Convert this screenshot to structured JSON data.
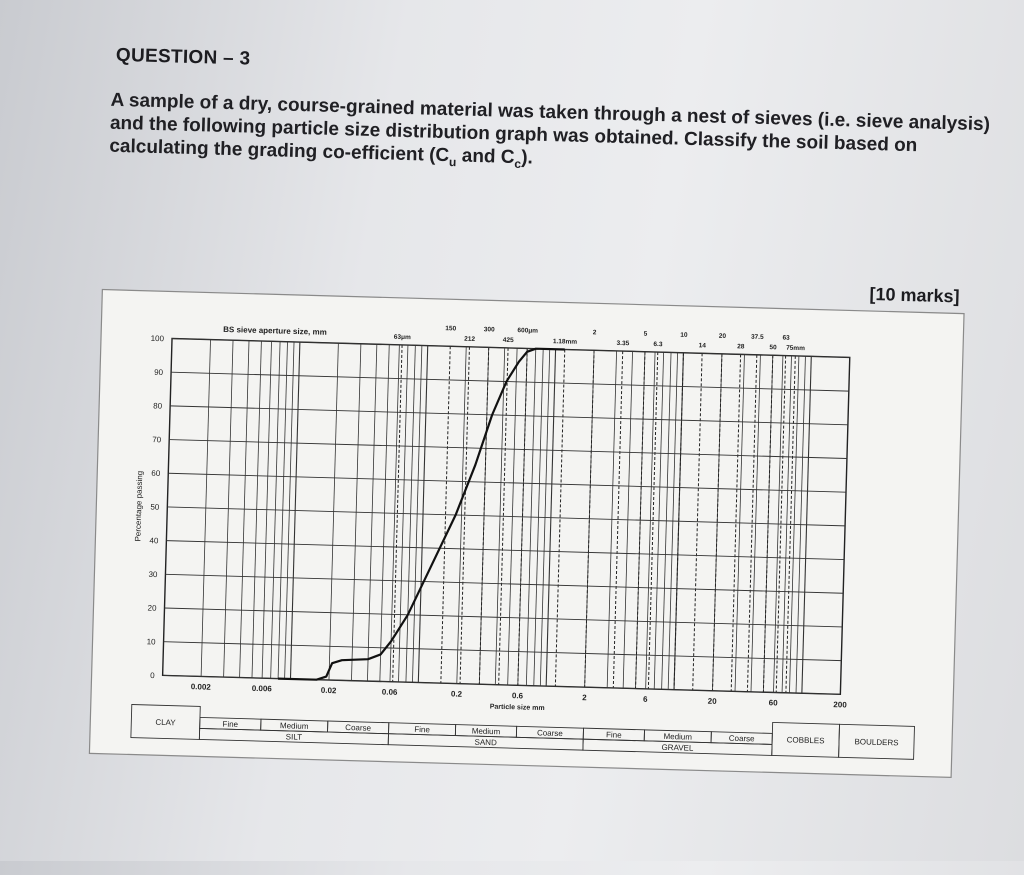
{
  "question": {
    "title": "QUESTION – 3",
    "body_parts": [
      "A sample of a dry, course-grained material was taken through a nest of sieves (i.e. sieve analysis) and the following particle size distribution graph was obtained. Classify the soil based on calculating the grading co-efficient (C",
      "u",
      " and C",
      "c",
      ")."
    ],
    "marks": "[10 marks]"
  },
  "chart_data": {
    "type": "line",
    "title": "",
    "xlabel": "Particle size mm",
    "ylabel": "Percentage passing",
    "top_caption": "BS sieve aperture size, mm",
    "x_scale": "log",
    "xlim": [
      0.001,
      200
    ],
    "ylim": [
      0,
      100
    ],
    "y_ticks": [
      "0",
      "10",
      "20",
      "30",
      "40",
      "50",
      "60",
      "70",
      "80",
      "90",
      "100"
    ],
    "x_ticks": [
      {
        "value": 0.002,
        "label": "0.002"
      },
      {
        "value": 0.006,
        "label": "0.006"
      },
      {
        "value": 0.02,
        "label": "0.02"
      },
      {
        "value": 0.06,
        "label": "0.06"
      },
      {
        "value": 0.2,
        "label": "0.2"
      },
      {
        "value": 0.6,
        "label": "0.6"
      },
      {
        "value": 2,
        "label": "2"
      },
      {
        "value": 6,
        "label": "6"
      },
      {
        "value": 20,
        "label": "20"
      },
      {
        "value": 60,
        "label": "60"
      },
      {
        "value": 200,
        "label": "200"
      }
    ],
    "sieve_labels": [
      {
        "value": 0.063,
        "label": "63μm"
      },
      {
        "value": 0.15,
        "label": "150"
      },
      {
        "value": 0.212,
        "label": "212"
      },
      {
        "value": 0.3,
        "label": "300"
      },
      {
        "value": 0.425,
        "label": "425"
      },
      {
        "value": 0.6,
        "label": "600μm"
      },
      {
        "value": 1.18,
        "label": "1.18mm"
      },
      {
        "value": 2,
        "label": "2"
      },
      {
        "value": 3.35,
        "label": "3.35"
      },
      {
        "value": 5,
        "label": "5"
      },
      {
        "value": 6.3,
        "label": "6.3"
      },
      {
        "value": 10,
        "label": "10"
      },
      {
        "value": 14,
        "label": "14"
      },
      {
        "value": 20,
        "label": "20"
      },
      {
        "value": 28,
        "label": "28"
      },
      {
        "value": 37.5,
        "label": "37.5"
      },
      {
        "value": 50,
        "label": "50"
      },
      {
        "value": 63,
        "label": "63"
      },
      {
        "value": 75,
        "label": "75mm"
      }
    ],
    "series": [
      {
        "points": [
          [
            0.008,
            0
          ],
          [
            0.016,
            0
          ],
          [
            0.019,
            1
          ],
          [
            0.021,
            5
          ],
          [
            0.025,
            6
          ],
          [
            0.04,
            6.5
          ],
          [
            0.05,
            8
          ],
          [
            0.06,
            12
          ],
          [
            0.08,
            20
          ],
          [
            0.12,
            35
          ],
          [
            0.18,
            50
          ],
          [
            0.25,
            65
          ],
          [
            0.33,
            80
          ],
          [
            0.42,
            90
          ],
          [
            0.52,
            96
          ],
          [
            0.6,
            99
          ],
          [
            0.7,
            100
          ],
          [
            1.18,
            100
          ]
        ]
      }
    ],
    "grid": true,
    "classification": {
      "rows": [
        [
          {
            "label": "CLAY",
            "from": 0.001,
            "to": 0.002
          }
        ],
        [
          {
            "label": "Fine",
            "from": 0.002,
            "to": 0.006
          },
          {
            "label": "Medium",
            "from": 0.006,
            "to": 0.02
          },
          {
            "label": "Coarse",
            "from": 0.02,
            "to": 0.06
          },
          {
            "label": "Fine",
            "from": 0.06,
            "to": 0.2
          },
          {
            "label": "Medium",
            "from": 0.2,
            "to": 0.6
          },
          {
            "label": "Coarse",
            "from": 0.6,
            "to": 2
          },
          {
            "label": "Fine",
            "from": 2,
            "to": 6
          },
          {
            "label": "Medium",
            "from": 6,
            "to": 20
          },
          {
            "label": "Coarse",
            "from": 20,
            "to": 60
          }
        ],
        [
          {
            "label": "SILT",
            "from": 0.002,
            "to": 0.06
          },
          {
            "label": "SAND",
            "from": 0.06,
            "to": 2
          },
          {
            "label": "GRAVEL",
            "from": 2,
            "to": 60
          },
          {
            "label": "COBBLES",
            "from": 60,
            "to": 200
          },
          {
            "label": "BOULDERS",
            "from": 200,
            "to": 600
          }
        ]
      ]
    }
  }
}
